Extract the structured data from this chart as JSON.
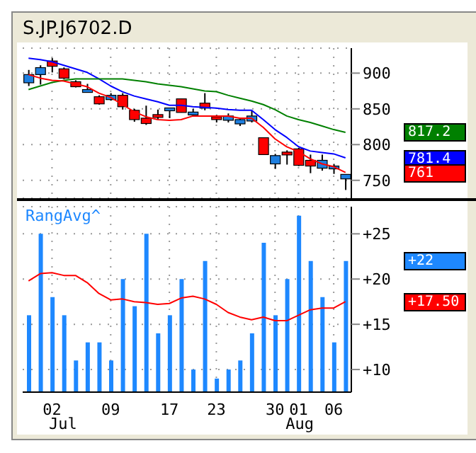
{
  "chart_data": [
    {
      "type": "candlestick",
      "title": "S.JP.J6702.D",
      "categories": [
        null,
        null,
        "02",
        null,
        null,
        null,
        null,
        "09",
        null,
        null,
        null,
        null,
        "17",
        null,
        null,
        null,
        "23",
        null,
        null,
        null,
        null,
        "30",
        null,
        "01",
        null,
        null,
        "06",
        null
      ],
      "ohlc": [
        [
          886.5,
          904.5,
          882,
          898
        ],
        [
          898,
          911,
          884,
          907.7
        ],
        [
          917,
          921,
          901,
          909.6
        ],
        [
          906,
          908,
          891.7,
          893
        ],
        [
          888,
          890,
          880,
          881
        ],
        [
          875.6,
          885,
          874,
          877
        ],
        [
          867,
          869,
          856,
          857
        ],
        [
          863,
          872,
          861.5,
          869
        ],
        [
          869,
          872,
          849,
          853
        ],
        [
          848,
          850,
          832,
          835
        ],
        [
          837,
          854.5,
          827.6,
          829.5
        ],
        [
          842,
          849,
          834,
          841
        ],
        [
          849.5,
          851.3,
          837,
          851.3
        ],
        [
          864,
          864,
          845,
          845
        ],
        [
          844.5,
          850,
          840,
          845.5
        ],
        [
          858,
          872,
          848,
          851
        ],
        [
          839,
          841.7,
          831,
          835
        ],
        [
          834,
          843.6,
          831,
          840
        ],
        [
          829,
          837,
          826,
          835
        ],
        [
          833,
          848,
          831,
          840
        ],
        [
          809.6,
          809.6,
          786,
          786
        ],
        [
          773,
          787,
          766,
          784.6
        ],
        [
          789.5,
          792,
          772,
          788.5
        ],
        [
          794,
          795.5,
          770,
          771
        ],
        [
          778,
          786,
          760,
          770
        ],
        [
          767,
          786,
          763.5,
          778
        ],
        [
          769,
          773,
          759,
          770
        ],
        [
          752,
          758.3,
          736.5,
          758.3
        ]
      ],
      "colors": [
        "#1e7fe0",
        "#1e7fe0",
        "#ff0000",
        "#ff0000",
        "#ff0000",
        "#1e7fe0",
        "#ff0000",
        "#1e7fe0",
        "#ff0000",
        "#ff0000",
        "#ff0000",
        "#ff0000",
        "#1e7fe0",
        "#ff0000",
        "#1e7fe0",
        "#ff0000",
        "#ff0000",
        "#1e7fe0",
        "#1e7fe0",
        "#1e7fe0",
        "#ff0000",
        "#1e7fe0",
        "#ff0000",
        "#ff0000",
        "#ff0000",
        "#1e7fe0",
        "#1e7fe0",
        "#1e7fe0"
      ],
      "series": [
        {
          "type": "line",
          "color": "#0000ff",
          "values": [
            921,
            919,
            916,
            911,
            906,
            901,
            892,
            882,
            874,
            868,
            864,
            860,
            855,
            855,
            853,
            852,
            851,
            849,
            848,
            848,
            835,
            821,
            810,
            797,
            791,
            789,
            787,
            781.4
          ]
        },
        {
          "type": "line",
          "color": "#008000",
          "values": [
            877,
            882,
            887,
            890,
            892,
            892,
            892,
            892,
            892,
            890,
            888,
            885,
            883,
            881,
            878,
            875,
            874,
            869,
            865,
            861,
            856,
            849,
            840,
            835,
            831,
            826,
            821,
            817.2
          ]
        },
        {
          "type": "line",
          "color": "#ff0000",
          "values": [
            898,
            893,
            890,
            889,
            885,
            881,
            872,
            866,
            856,
            846,
            839,
            835,
            834,
            835,
            840,
            840,
            840,
            840,
            837,
            837,
            824,
            808,
            797,
            790,
            780,
            773,
            769,
            761
          ]
        }
      ],
      "ylim": [
        725,
        935
      ],
      "yticks": [
        750,
        800,
        850,
        900
      ],
      "grid": true,
      "tick_labels": "y",
      "marker": "none",
      "annotations": [
        "781.4",
        "817.2",
        "761"
      ]
    },
    {
      "type": "bar",
      "title": "RangAvg^",
      "categories": [
        null,
        null,
        "02",
        null,
        null,
        null,
        null,
        "09",
        null,
        null,
        null,
        null,
        "17",
        null,
        null,
        null,
        "23",
        null,
        null,
        null,
        null,
        "30",
        null,
        "01",
        null,
        null,
        "06",
        null
      ],
      "series": [
        {
          "type": "bar",
          "color": "#1e88ff",
          "values": [
            16,
            25,
            18,
            16,
            11,
            13,
            13,
            11,
            20,
            17,
            25,
            14,
            16,
            20,
            10,
            22,
            9,
            10,
            11,
            14,
            24,
            16,
            20,
            27,
            22,
            18,
            13,
            22
          ]
        },
        {
          "type": "line",
          "color": "#ff0000",
          "values": [
            19.8,
            20.6,
            20.7,
            20.4,
            20.4,
            19.6,
            18.4,
            17.7,
            17.8,
            17.5,
            17.4,
            17.2,
            17.3,
            17.9,
            18.1,
            17.8,
            17.2,
            16.3,
            15.8,
            15.5,
            15.8,
            15.4,
            15.4,
            16,
            16.6,
            16.8,
            16.8,
            17.5
          ]
        }
      ],
      "ylim": [
        7.5,
        28
      ],
      "yticks": [
        {
          "value": 10,
          "label": "+10"
        },
        {
          "value": 15,
          "label": "+15"
        },
        {
          "value": 20,
          "label": "+20"
        },
        {
          "value": 25,
          "label": "+25"
        }
      ],
      "grid": true,
      "marker": "none",
      "annotations": [
        "+22",
        "+17.50",
        "Jul",
        "Aug"
      ]
    }
  ]
}
